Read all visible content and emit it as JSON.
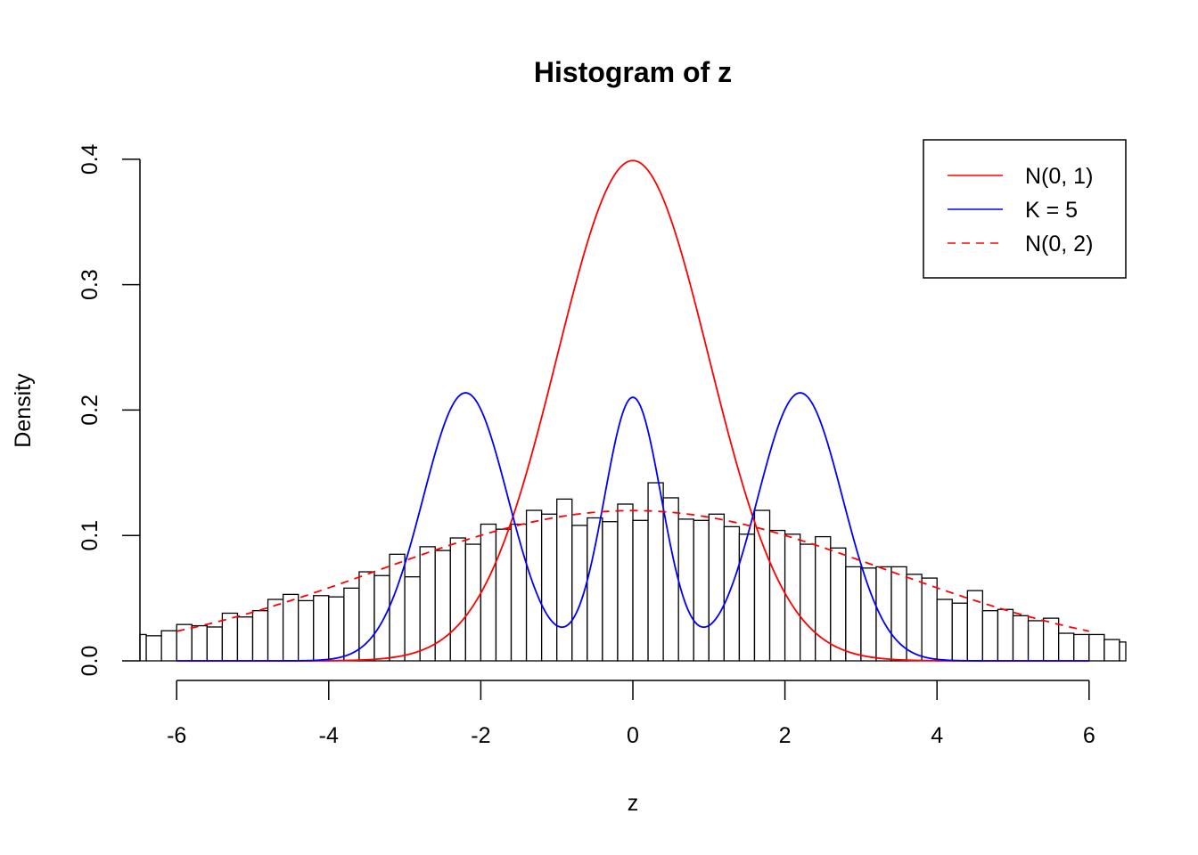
{
  "chart_data": {
    "type": "bar",
    "title": "Histogram of z",
    "xlabel": "z",
    "ylabel": "Density",
    "xlim": [
      -6.5,
      6.5
    ],
    "ylim": [
      0,
      0.4
    ],
    "x_ticks": [
      "-6",
      "-4",
      "-2",
      "0",
      "2",
      "4",
      "6"
    ],
    "y_ticks": [
      "0.0",
      "0.1",
      "0.2",
      "0.3",
      "0.4"
    ],
    "bin_width": 0.2,
    "bins_start": -6.6,
    "histogram_density": [
      0.021,
      0.02,
      0.024,
      0.029,
      0.028,
      0.027,
      0.038,
      0.035,
      0.04,
      0.049,
      0.053,
      0.048,
      0.052,
      0.051,
      0.058,
      0.071,
      0.068,
      0.085,
      0.067,
      0.091,
      0.088,
      0.098,
      0.093,
      0.109,
      0.105,
      0.109,
      0.12,
      0.117,
      0.129,
      0.108,
      0.114,
      0.111,
      0.125,
      0.112,
      0.142,
      0.13,
      0.113,
      0.112,
      0.117,
      0.107,
      0.101,
      0.12,
      0.104,
      0.101,
      0.093,
      0.099,
      0.09,
      0.075,
      0.074,
      0.075,
      0.075,
      0.069,
      0.066,
      0.049,
      0.046,
      0.056,
      0.04,
      0.041,
      0.036,
      0.032,
      0.034,
      0.022,
      0.021,
      0.021,
      0.017,
      0.015
    ],
    "curves": [
      {
        "name": "N(0, 1)",
        "color": "#ff0000",
        "style": "solid",
        "description_formula": "dnorm(x, 0, 1)",
        "x_range": [
          -6,
          6
        ]
      },
      {
        "name": "K = 5",
        "color": "#0000ff",
        "style": "solid",
        "description_formula": "mixture of three normals at -2.2, 0, 2.2",
        "x_range": [
          -6,
          6
        ]
      },
      {
        "name": "N(0, 2)",
        "color": "#ff0000",
        "style": "dashed",
        "description_formula": "dnorm(x, 0, sd 3.33)",
        "x_range": [
          -6,
          6
        ]
      }
    ],
    "legend": {
      "placement": "top-right",
      "entries": [
        "N(0, 1)",
        "K = 5",
        "N(0, 2)"
      ]
    },
    "grid": false
  }
}
